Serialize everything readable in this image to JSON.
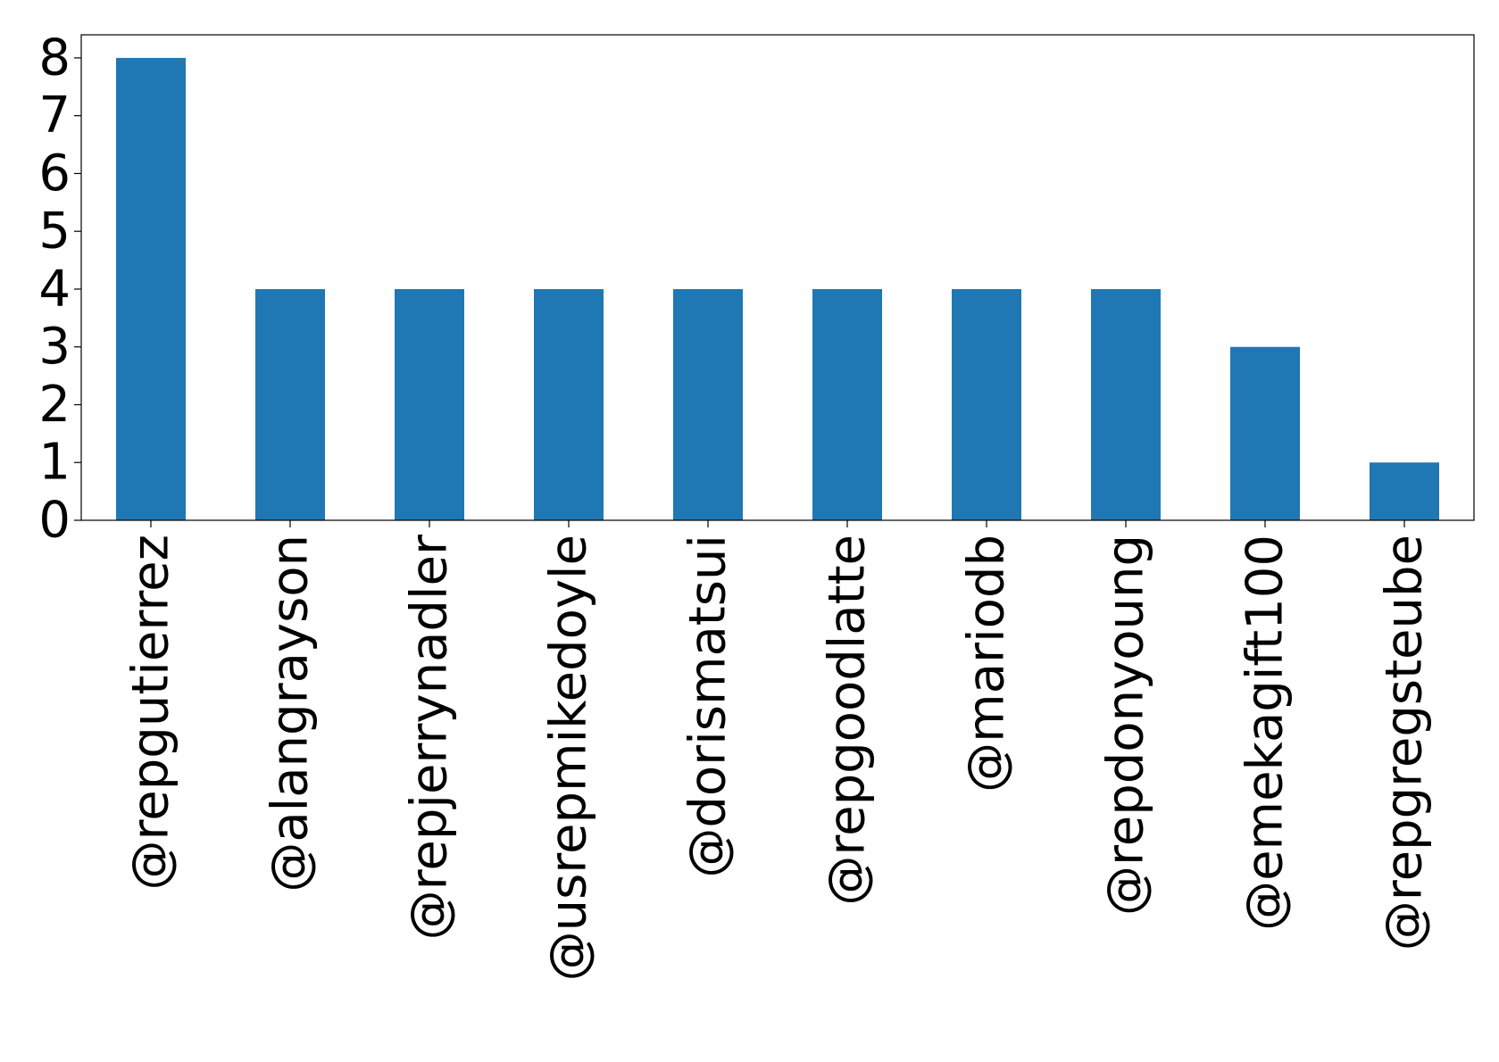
{
  "chart_data": {
    "type": "bar",
    "title": "",
    "xlabel": "",
    "ylabel": "",
    "categories": [
      "@repgutierrez",
      "@alangrayson",
      "@repjerrynadler",
      "@usrepmikedoyle",
      "@dorismatsui",
      "@repgoodlatte",
      "@mariodb",
      "@repdonyoung",
      "@emekagift100",
      "@repgregsteube"
    ],
    "values": [
      8,
      4,
      4,
      4,
      4,
      4,
      4,
      4,
      3,
      1
    ],
    "ylim": [
      0,
      8.4
    ],
    "yticks": [
      0,
      1,
      2,
      3,
      4,
      5,
      6,
      7,
      8
    ],
    "grid": false,
    "legend": "none",
    "bar_color": "#1f77b4"
  }
}
